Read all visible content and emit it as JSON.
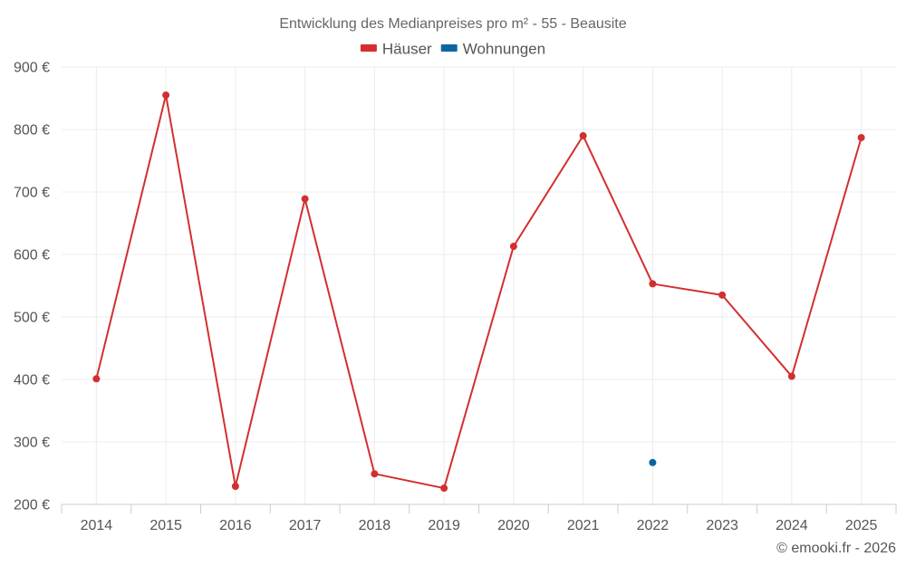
{
  "chart_data": {
    "type": "line",
    "title": "Entwicklung des Medianpreises pro m² - 55 - Beausite",
    "categories": [
      "2014",
      "2015",
      "2016",
      "2017",
      "2018",
      "2019",
      "2020",
      "2021",
      "2022",
      "2023",
      "2024",
      "2025"
    ],
    "series": [
      {
        "name": "Häuser",
        "color": "#d32f2f",
        "values": [
          401,
          855,
          229,
          689,
          249,
          226,
          613,
          790,
          553,
          535,
          405,
          787
        ]
      },
      {
        "name": "Wohnungen",
        "color": "#0a66a0",
        "values": [
          null,
          null,
          null,
          null,
          null,
          null,
          null,
          null,
          267,
          null,
          null,
          null
        ]
      }
    ],
    "ylim": [
      200,
      900
    ],
    "yticks": [
      200,
      300,
      400,
      500,
      600,
      700,
      800,
      900
    ],
    "ytick_suffix": " €",
    "xlabel": "",
    "ylabel": "",
    "grid": true,
    "legend_position": "top-center"
  },
  "credit": "© emooki.fr - 2026"
}
